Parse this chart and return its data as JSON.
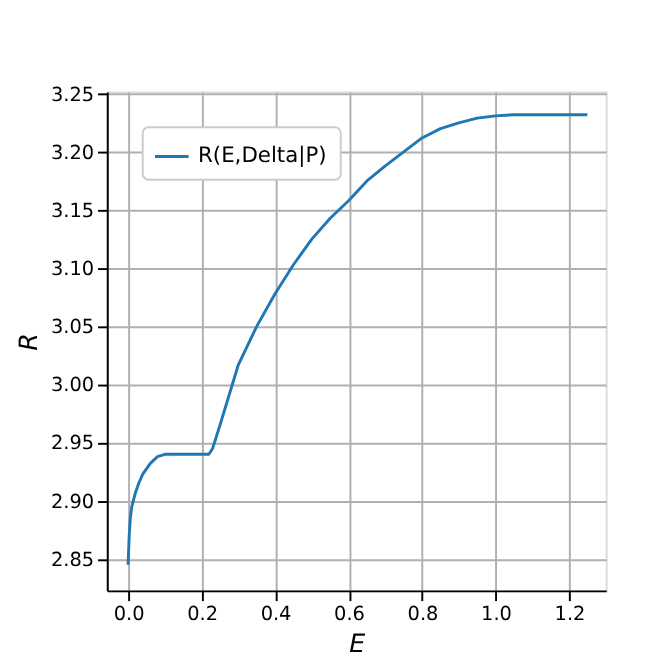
{
  "chart_data": {
    "type": "line",
    "xlabel": "E",
    "ylabel": "R",
    "xlim": [
      -0.058,
      1.3
    ],
    "ylim": [
      2.823,
      3.252
    ],
    "xticks": [
      {
        "value": 0,
        "label": "0.0"
      },
      {
        "value": 0.2,
        "label": "0.2"
      },
      {
        "value": 0.4,
        "label": "0.4"
      },
      {
        "value": 0.6,
        "label": "0.6"
      },
      {
        "value": 0.8,
        "label": "0.8"
      },
      {
        "value": 1,
        "label": "1.0"
      },
      {
        "value": 1.2,
        "label": "1.2"
      }
    ],
    "yticks": [
      {
        "value": 2.85,
        "label": "2.85"
      },
      {
        "value": 2.9,
        "label": "2.90"
      },
      {
        "value": 2.95,
        "label": "2.95"
      },
      {
        "value": 3,
        "label": "3.00"
      },
      {
        "value": 3.05,
        "label": "3.05"
      },
      {
        "value": 3.1,
        "label": "3.10"
      },
      {
        "value": 3.15,
        "label": "3.15"
      },
      {
        "value": 3.2,
        "label": "3.20"
      },
      {
        "value": 3.25,
        "label": "3.25"
      }
    ],
    "grid": true,
    "legend": "top left",
    "line_style": "solid",
    "marker": "none",
    "series": [
      {
        "name": "R(E,Delta|P)",
        "color": "#1f77b4",
        "x": [
          0,
          0.003,
          0.006,
          0.01,
          0.02,
          0.03,
          0.04,
          0.06,
          0.08,
          0.1,
          0.15,
          0.2,
          0.22,
          0.23,
          0.25,
          0.3,
          0.35,
          0.4,
          0.45,
          0.5,
          0.55,
          0.6,
          0.65,
          0.7,
          0.75,
          0.8,
          0.85,
          0.9,
          0.95,
          1.0,
          1.05,
          1.1,
          1.15,
          1.2,
          1.25
        ],
        "values": [
          2.845,
          2.87,
          2.885,
          2.895,
          2.907,
          2.916,
          2.923,
          2.932,
          2.938,
          2.94,
          2.94,
          2.94,
          2.94,
          2.945,
          2.965,
          3.017,
          3.05,
          3.078,
          3.103,
          3.125,
          3.143,
          3.158,
          3.175,
          3.188,
          3.2,
          3.212,
          3.22,
          3.225,
          3.229,
          3.231,
          3.232,
          3.232,
          3.232,
          3.232,
          3.232
        ]
      }
    ]
  }
}
